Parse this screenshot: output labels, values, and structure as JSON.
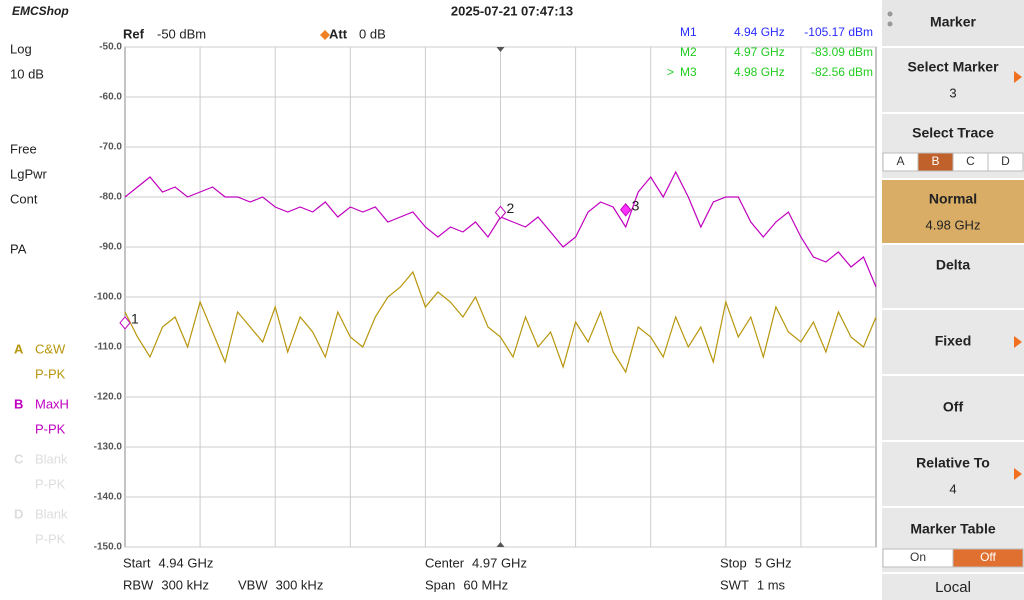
{
  "header": {
    "logo": "EMCShop",
    "datetime": "2025-07-21 07:47:13"
  },
  "left_panel": {
    "items": [
      "Log",
      "10 dB",
      "Free",
      "LgPwr",
      "Cont",
      "PA"
    ],
    "traces": [
      {
        "letter": "A",
        "mode": "C&W",
        "detector": "P-PK",
        "color": "#b8960c"
      },
      {
        "letter": "B",
        "mode": "MaxH",
        "detector": "P-PK",
        "color": "#c000c0"
      },
      {
        "letter": "C",
        "mode": "Blank",
        "detector": "P-PK",
        "color": "#dddddd"
      },
      {
        "letter": "D",
        "mode": "Blank",
        "detector": "P-PK",
        "color": "#dddddd"
      }
    ]
  },
  "settings": {
    "ref_label": "Ref",
    "ref_value": "-50 dBm",
    "att_label": "Att",
    "att_value": "0 dB"
  },
  "chart_data": {
    "type": "line",
    "xlim": [
      4.94,
      5.0
    ],
    "ylim": [
      -150,
      -50
    ],
    "yticks": [
      {
        "value": -50,
        "label": "-50.0"
      },
      {
        "value": -60,
        "label": "-60.0"
      },
      {
        "value": -70,
        "label": "-70.0"
      },
      {
        "value": -80,
        "label": "-80.0"
      },
      {
        "value": -90,
        "label": "-90.0"
      },
      {
        "value": -100,
        "label": "-100.0"
      },
      {
        "value": -110,
        "label": "-110.0"
      },
      {
        "value": -120,
        "label": "-120.0"
      },
      {
        "value": -130,
        "label": "-130.0"
      },
      {
        "value": -140,
        "label": "-140.0"
      },
      {
        "value": -150,
        "label": "-150.0"
      }
    ],
    "grid": true,
    "x": [
      4.94,
      4.941,
      4.942,
      4.943,
      4.944,
      4.945,
      4.946,
      4.947,
      4.948,
      4.949,
      4.95,
      4.951,
      4.952,
      4.953,
      4.954,
      4.955,
      4.956,
      4.957,
      4.958,
      4.959,
      4.96,
      4.961,
      4.962,
      4.963,
      4.964,
      4.965,
      4.966,
      4.967,
      4.968,
      4.969,
      4.97,
      4.971,
      4.972,
      4.973,
      4.974,
      4.975,
      4.976,
      4.977,
      4.978,
      4.979,
      4.98,
      4.981,
      4.982,
      4.983,
      4.984,
      4.985,
      4.986,
      4.987,
      4.988,
      4.989,
      4.99,
      4.991,
      4.992,
      4.993,
      4.994,
      4.995,
      4.996,
      4.997,
      4.998,
      4.999,
      5.0
    ],
    "series": [
      {
        "name": "A",
        "color": "#b8960c",
        "values": [
          -103,
          -108,
          -112,
          -106,
          -104,
          -110,
          -101,
          -107,
          -113,
          -103,
          -106,
          -109,
          -102,
          -111,
          -104,
          -107,
          -112,
          -103,
          -108,
          -110,
          -104,
          -100,
          -98,
          -95,
          -102,
          -99,
          -101,
          -104,
          -100,
          -106,
          -108,
          -112,
          -104,
          -110,
          -107,
          -114,
          -105,
          -109,
          -103,
          -111,
          -115,
          -106,
          -108,
          -112,
          -104,
          -110,
          -106,
          -113,
          -101,
          -108,
          -104,
          -112,
          -102,
          -107,
          -109,
          -105,
          -111,
          -103,
          -108,
          -110,
          -104
        ]
      },
      {
        "name": "B",
        "color": "#c000c0",
        "values": [
          -80,
          -78,
          -76,
          -79,
          -78,
          -80,
          -79,
          -78,
          -80,
          -80,
          -81,
          -80,
          -82,
          -83,
          -82,
          -83,
          -81,
          -84,
          -82,
          -83,
          -82,
          -85,
          -84,
          -83,
          -86,
          -88,
          -86,
          -87,
          -85,
          -88,
          -84,
          -85,
          -86,
          -84,
          -87,
          -90,
          -88,
          -83,
          -81,
          -82,
          -86,
          -79,
          -76,
          -80,
          -75,
          -80,
          -86,
          -81,
          -80,
          -80,
          -85,
          -88,
          -85,
          -83,
          -88,
          -92,
          -93,
          -91,
          -94,
          -92,
          -98
        ]
      }
    ],
    "markers": [
      {
        "name": "M1",
        "plot_label": "1",
        "x": 4.94,
        "y": -105.17,
        "x_label": "4.94 GHz",
        "y_label": "-105.17 dBm",
        "color": "#2a2aff"
      },
      {
        "name": "M2",
        "plot_label": "2",
        "x": 4.97,
        "y": -83.09,
        "x_label": "4.97 GHz",
        "y_label": "-83.09 dBm",
        "color": "#22cc22"
      },
      {
        "name": "M3",
        "plot_label": "3",
        "x": 4.98,
        "y": -82.56,
        "x_label": "4.98 GHz",
        "y_label": "-82.56 dBm",
        "color": "#22cc22",
        "prefix": ">"
      }
    ],
    "active_marker": 2
  },
  "footer": [
    {
      "label": "Start",
      "value": "4.94 GHz"
    },
    {
      "label": "Center",
      "value": "4.97 GHz"
    },
    {
      "label": "Stop",
      "value": "5 GHz"
    },
    {
      "label": "RBW",
      "value": "300 kHz"
    },
    {
      "label": "VBW",
      "value": "300 kHz"
    },
    {
      "label": "Span",
      "value": "60 MHz"
    },
    {
      "label": "SWT",
      "value": "1 ms"
    }
  ],
  "menu": {
    "title": "Marker",
    "select_marker": {
      "label": "Select Marker",
      "value": "3"
    },
    "select_trace": {
      "label": "Select Trace",
      "options": [
        "A",
        "B",
        "C",
        "D"
      ],
      "selected": 1
    },
    "normal": {
      "label": "Normal",
      "value": "4.98 GHz"
    },
    "delta": "Delta",
    "fixed": "Fixed",
    "off": "Off",
    "relative_to": {
      "label": "Relative To",
      "value": "4"
    },
    "marker_table": {
      "label": "Marker Table",
      "options": [
        "On",
        "Off"
      ],
      "selected": 1
    },
    "local": "Local"
  }
}
